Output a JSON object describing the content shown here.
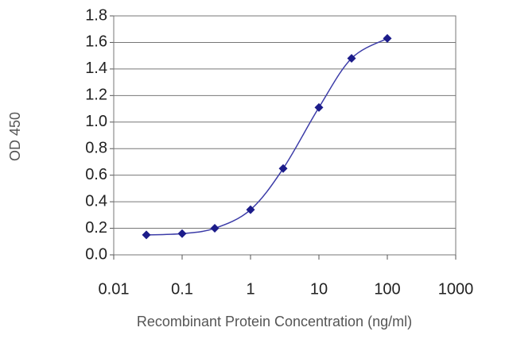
{
  "chart_data": {
    "type": "scatter",
    "x_label": "Recombinant Protein Concentration (ng/ml)",
    "y_label": "OD 450",
    "x": [
      0.03,
      0.1,
      0.3,
      1,
      3,
      10,
      30,
      100
    ],
    "values": [
      0.15,
      0.16,
      0.2,
      0.34,
      0.65,
      1.11,
      1.48,
      1.63
    ],
    "color": "#1c1c8a",
    "line_color": "#3c3ca8",
    "xlim": [
      0.01,
      1000
    ],
    "x_log": true,
    "xticks": [
      0.01,
      0.1,
      1,
      10,
      100,
      1000
    ],
    "ylim": [
      0,
      1.8
    ],
    "yticks": [
      {
        "value": 0,
        "label": "0.0"
      },
      0.2,
      0.4,
      0.6,
      0.8,
      {
        "value": 1,
        "label": "1.0"
      },
      1.2,
      1.4,
      1.6,
      1.8
    ],
    "grid": true
  }
}
